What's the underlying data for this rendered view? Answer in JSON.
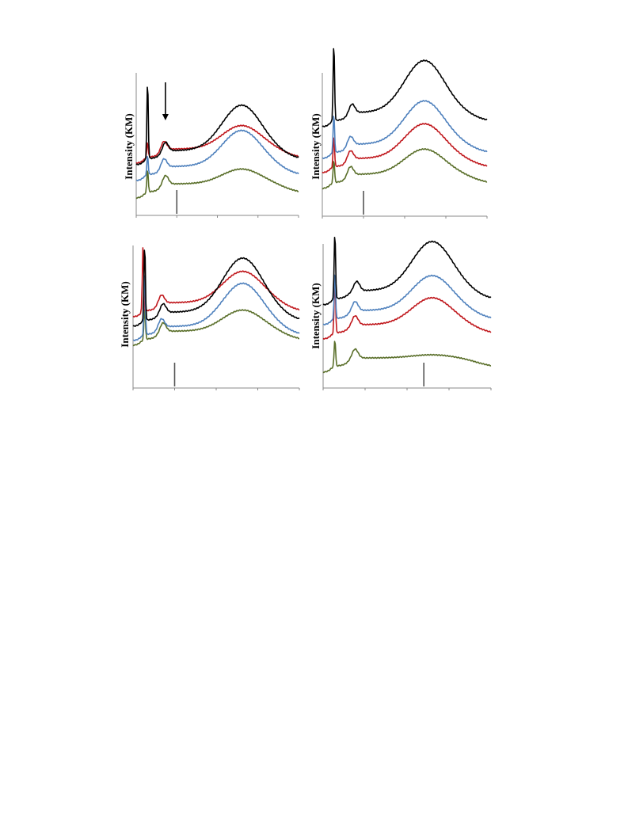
{
  "colors": {
    "black": "#000000",
    "blue": "#4f81bd",
    "red": "#c0181d",
    "green": "#5a6f2a",
    "axis": "#888888",
    "marker": "#555555"
  },
  "chart_data": [
    {
      "type": "line",
      "ylabel": "Intensity (KM)",
      "xlabel": "",
      "tick_labels_visible": false,
      "xlim": [
        0,
        1
      ],
      "annotation": {
        "type": "arrow",
        "x": 0.18,
        "target_series": "black"
      },
      "marker_line": {
        "x": 0.25
      },
      "series": [
        {
          "color": "black",
          "sharp_peak_x": 0.07,
          "sharp_peak_height": 1.0,
          "shoulder_x": 0.18,
          "broad_peak_x": 0.65,
          "broad_peak_height": 0.76,
          "offset": 3
        },
        {
          "color": "blue",
          "sharp_peak_x": 0.07,
          "sharp_peak_height": 0.25,
          "shoulder_x": 0.17,
          "broad_peak_x": 0.65,
          "broad_peak_height": 0.64,
          "offset": 2
        },
        {
          "color": "red",
          "sharp_peak_x": 0.07,
          "sharp_peak_height": 0.2,
          "shoulder_x": 0.17,
          "broad_peak_x": 0.65,
          "broad_peak_height": 0.48,
          "offset": 1
        },
        {
          "color": "green",
          "sharp_peak_x": 0.07,
          "sharp_peak_height": 0.3,
          "shoulder_x": 0.18,
          "broad_peak_x": 0.65,
          "broad_peak_height": 0.37,
          "offset": 0
        }
      ]
    },
    {
      "type": "line",
      "ylabel": "Intensity (KM)",
      "xlabel": "",
      "tick_labels_visible": false,
      "xlim": [
        0,
        1
      ],
      "marker_line": {
        "x": 0.25
      },
      "series": [
        {
          "color": "black",
          "sharp_peak_x": 0.07,
          "sharp_peak_height": 1.0,
          "shoulder_x": 0.18,
          "broad_peak_x": 0.62,
          "broad_peak_height": 0.84,
          "offset": 3
        },
        {
          "color": "blue",
          "sharp_peak_x": 0.07,
          "sharp_peak_height": 0.5,
          "shoulder_x": 0.17,
          "broad_peak_x": 0.62,
          "broad_peak_height": 0.73,
          "offset": 2
        },
        {
          "color": "red",
          "sharp_peak_x": 0.07,
          "sharp_peak_height": 0.4,
          "shoulder_x": 0.17,
          "broad_peak_x": 0.62,
          "broad_peak_height": 0.62,
          "offset": 1
        },
        {
          "color": "green",
          "sharp_peak_x": 0.07,
          "sharp_peak_height": 0.3,
          "shoulder_x": 0.17,
          "broad_peak_x": 0.62,
          "broad_peak_height": 0.5,
          "offset": 0
        }
      ]
    },
    {
      "type": "line",
      "ylabel": "Intensity (KM)",
      "xlabel": "",
      "tick_labels_visible": false,
      "xlim": [
        0,
        1
      ],
      "marker_line": {
        "x": 0.25
      },
      "series": [
        {
          "color": "black",
          "sharp_peak_x": 0.07,
          "sharp_peak_height": 0.98,
          "shoulder_x": 0.18,
          "broad_peak_x": 0.66,
          "broad_peak_height": 0.87,
          "offset": 3
        },
        {
          "color": "blue",
          "sharp_peak_x": 0.07,
          "sharp_peak_height": 0.82,
          "shoulder_x": 0.17,
          "broad_peak_x": 0.66,
          "broad_peak_height": 0.73,
          "offset": 2
        },
        {
          "color": "red",
          "sharp_peak_x": 0.06,
          "sharp_peak_height": 0.84,
          "shoulder_x": 0.17,
          "broad_peak_x": 0.66,
          "broad_peak_height": 0.58,
          "offset": 1
        },
        {
          "color": "green",
          "sharp_peak_x": 0.07,
          "sharp_peak_height": 0.42,
          "shoulder_x": 0.18,
          "broad_peak_x": 0.66,
          "broad_peak_height": 0.45,
          "offset": 0
        }
      ]
    },
    {
      "type": "line",
      "ylabel": "Intensity (KM)",
      "xlabel": "",
      "tick_labels_visible": false,
      "xlim": [
        0,
        1
      ],
      "marker_line": {
        "x": 0.6
      },
      "series": [
        {
          "color": "black",
          "sharp_peak_x": 0.07,
          "sharp_peak_height": 0.85,
          "shoulder_x": 0.2,
          "broad_peak_x": 0.65,
          "broad_peak_height": 0.8,
          "offset": 3
        },
        {
          "color": "blue",
          "sharp_peak_x": 0.07,
          "sharp_peak_height": 0.6,
          "shoulder_x": 0.19,
          "broad_peak_x": 0.65,
          "broad_peak_height": 0.62,
          "offset": 2
        },
        {
          "color": "red",
          "sharp_peak_x": 0.07,
          "sharp_peak_height": 0.7,
          "shoulder_x": 0.19,
          "broad_peak_x": 0.65,
          "broad_peak_height": 0.52,
          "offset": 1
        },
        {
          "color": "green",
          "sharp_peak_x": 0.07,
          "sharp_peak_height": 0.35,
          "shoulder_x": 0.19,
          "broad_peak_x": 0.65,
          "broad_peak_height": 0.22,
          "offset": 0
        }
      ]
    }
  ]
}
